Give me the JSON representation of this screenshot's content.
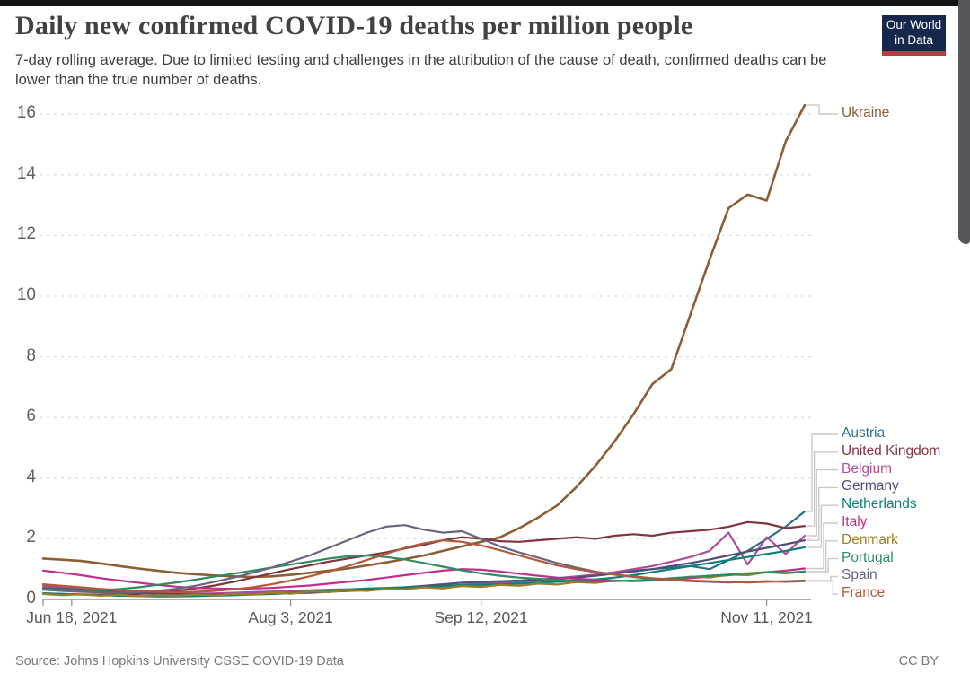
{
  "header": {
    "logo": {
      "line1": "Our World",
      "line2": "in Data",
      "bg_color": "#15284B",
      "accent_color": "#BE3A3C"
    }
  },
  "footer": {
    "source": "Source: Johns Hopkins University CSSE COVID-19 Data",
    "license": "CC BY"
  },
  "chart_data": {
    "type": "line",
    "title": "Daily new confirmed COVID-19 deaths per million people",
    "subtitle": "7-day rolling average. Due to limited testing and challenges in the attribution of the cause of death, confirmed deaths can be lower than the true number of deaths.",
    "grid": "dashed-horizontal",
    "legend_position": "right-edge-labels",
    "ylim": [
      0,
      16
    ],
    "y_ticks": [
      0,
      2,
      4,
      6,
      8,
      10,
      12,
      14,
      16
    ],
    "x_domain_days": [
      0,
      160
    ],
    "sample_step_days": 4,
    "x_ticks": [
      {
        "day": 6,
        "label": "Jun 18, 2021"
      },
      {
        "day": 52,
        "label": "Aug 3, 2021"
      },
      {
        "day": 92,
        "label": "Sep 12, 2021"
      },
      {
        "day": 152,
        "label": "Nov 11, 2021"
      }
    ],
    "series": [
      {
        "name": "Ukraine",
        "color": "#8B5E34",
        "values": [
          1.35,
          1.31,
          1.27,
          1.19,
          1.1,
          1.02,
          0.95,
          0.88,
          0.83,
          0.79,
          0.76,
          0.74,
          0.76,
          0.81,
          0.88,
          0.95,
          1.02,
          1.12,
          1.22,
          1.33,
          1.45,
          1.6,
          1.75,
          1.9,
          2.05,
          2.35,
          2.7,
          3.1,
          3.7,
          4.4,
          5.2,
          6.1,
          7.1,
          7.6,
          9.4,
          11.2,
          12.9,
          13.35,
          13.15,
          15.1,
          16.3
        ]
      },
      {
        "name": "Austria",
        "color": "#2C7287",
        "values": [
          0.38,
          0.34,
          0.3,
          0.26,
          0.23,
          0.2,
          0.18,
          0.16,
          0.15,
          0.15,
          0.16,
          0.18,
          0.2,
          0.22,
          0.24,
          0.26,
          0.28,
          0.3,
          0.33,
          0.36,
          0.4,
          0.44,
          0.48,
          0.52,
          0.56,
          0.6,
          0.65,
          0.7,
          0.76,
          0.82,
          0.88,
          0.95,
          1.0,
          1.05,
          1.1,
          1.0,
          1.3,
          1.6,
          2.0,
          2.4,
          2.9
        ]
      },
      {
        "name": "United Kingdom",
        "color": "#7E353E",
        "values": [
          0.2,
          0.18,
          0.17,
          0.16,
          0.16,
          0.18,
          0.22,
          0.28,
          0.36,
          0.46,
          0.58,
          0.72,
          0.86,
          1.0,
          1.12,
          1.25,
          1.35,
          1.45,
          1.55,
          1.68,
          1.8,
          1.95,
          2.05,
          2.0,
          1.92,
          1.9,
          1.95,
          2.0,
          2.05,
          2.0,
          2.1,
          2.15,
          2.1,
          2.2,
          2.25,
          2.3,
          2.4,
          2.55,
          2.5,
          2.35,
          2.42
        ]
      },
      {
        "name": "Belgium",
        "color": "#AD4E96",
        "values": [
          0.45,
          0.4,
          0.36,
          0.32,
          0.28,
          0.25,
          0.22,
          0.2,
          0.19,
          0.2,
          0.22,
          0.24,
          0.26,
          0.28,
          0.3,
          0.32,
          0.33,
          0.34,
          0.35,
          0.37,
          0.4,
          0.43,
          0.46,
          0.5,
          0.54,
          0.58,
          0.62,
          0.68,
          0.75,
          0.82,
          0.9,
          1.0,
          1.1,
          1.25,
          1.4,
          1.6,
          2.2,
          1.15,
          2.05,
          1.5,
          2.1
        ]
      },
      {
        "name": "Germany",
        "color": "#514C79",
        "values": [
          0.38,
          0.35,
          0.32,
          0.28,
          0.25,
          0.22,
          0.2,
          0.18,
          0.17,
          0.16,
          0.16,
          0.17,
          0.18,
          0.2,
          0.22,
          0.25,
          0.28,
          0.32,
          0.36,
          0.4,
          0.45,
          0.5,
          0.55,
          0.58,
          0.6,
          0.62,
          0.65,
          0.68,
          0.72,
          0.78,
          0.85,
          0.92,
          1.0,
          1.1,
          1.2,
          1.32,
          1.45,
          1.58,
          1.7,
          1.82,
          1.95
        ]
      },
      {
        "name": "Netherlands",
        "color": "#0E7F78",
        "values": [
          0.2,
          0.18,
          0.16,
          0.14,
          0.12,
          0.11,
          0.1,
          0.1,
          0.11,
          0.12,
          0.14,
          0.16,
          0.18,
          0.22,
          0.26,
          0.3,
          0.33,
          0.36,
          0.38,
          0.4,
          0.42,
          0.44,
          0.46,
          0.48,
          0.5,
          0.52,
          0.55,
          0.58,
          0.62,
          0.66,
          0.72,
          0.8,
          0.9,
          1.0,
          1.1,
          1.2,
          1.3,
          1.4,
          1.5,
          1.6,
          1.72
        ]
      },
      {
        "name": "Italy",
        "color": "#C02F8C",
        "values": [
          0.95,
          0.88,
          0.8,
          0.7,
          0.62,
          0.55,
          0.48,
          0.42,
          0.38,
          0.36,
          0.35,
          0.36,
          0.38,
          0.42,
          0.46,
          0.52,
          0.58,
          0.64,
          0.72,
          0.8,
          0.88,
          0.95,
          1.0,
          0.98,
          0.92,
          0.85,
          0.78,
          0.72,
          0.68,
          0.65,
          0.62,
          0.6,
          0.62,
          0.65,
          0.7,
          0.75,
          0.8,
          0.85,
          0.9,
          0.95,
          1.02
        ]
      },
      {
        "name": "Denmark",
        "color": "#9E7D25",
        "values": [
          0.18,
          0.14,
          0.17,
          0.12,
          0.15,
          0.11,
          0.14,
          0.12,
          0.16,
          0.13,
          0.18,
          0.16,
          0.22,
          0.19,
          0.26,
          0.24,
          0.31,
          0.28,
          0.35,
          0.33,
          0.4,
          0.36,
          0.44,
          0.41,
          0.48,
          0.45,
          0.52,
          0.49,
          0.57,
          0.54,
          0.62,
          0.6,
          0.68,
          0.66,
          0.75,
          0.72,
          0.82,
          0.8,
          0.9,
          0.86,
          0.92
        ]
      },
      {
        "name": "Portugal",
        "color": "#2F8A5F",
        "values": [
          0.35,
          0.32,
          0.3,
          0.31,
          0.34,
          0.4,
          0.48,
          0.56,
          0.65,
          0.75,
          0.85,
          0.95,
          1.05,
          1.15,
          1.25,
          1.35,
          1.42,
          1.45,
          1.4,
          1.32,
          1.2,
          1.08,
          0.96,
          0.86,
          0.78,
          0.72,
          0.68,
          0.64,
          0.61,
          0.59,
          0.6,
          0.62,
          0.65,
          0.7,
          0.74,
          0.78,
          0.82,
          0.86,
          0.9,
          0.88,
          0.92
        ]
      },
      {
        "name": "Spain",
        "color": "#6D6380",
        "values": [
          0.32,
          0.28,
          0.25,
          0.23,
          0.22,
          0.24,
          0.28,
          0.35,
          0.45,
          0.58,
          0.72,
          0.88,
          1.05,
          1.25,
          1.45,
          1.7,
          1.95,
          2.2,
          2.4,
          2.45,
          2.3,
          2.2,
          2.25,
          2.0,
          1.75,
          1.55,
          1.38,
          1.2,
          1.05,
          0.92,
          0.82,
          0.74,
          0.68,
          0.64,
          0.6,
          0.58,
          0.56,
          0.58,
          0.6,
          0.58,
          0.6
        ]
      },
      {
        "name": "France",
        "color": "#B2593B",
        "values": [
          0.5,
          0.45,
          0.4,
          0.35,
          0.3,
          0.27,
          0.25,
          0.24,
          0.25,
          0.28,
          0.33,
          0.4,
          0.5,
          0.62,
          0.76,
          0.92,
          1.1,
          1.3,
          1.5,
          1.7,
          1.85,
          1.95,
          1.9,
          1.78,
          1.62,
          1.45,
          1.28,
          1.12,
          1.0,
          0.9,
          0.82,
          0.76,
          0.7,
          0.66,
          0.62,
          0.6,
          0.58,
          0.56,
          0.58,
          0.6,
          0.62
        ]
      }
    ]
  }
}
